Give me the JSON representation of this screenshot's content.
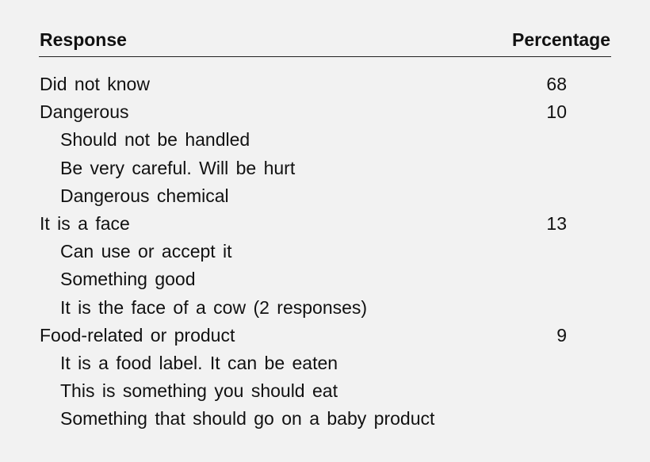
{
  "table": {
    "headers": {
      "response": "Response",
      "percentage": "Percentage"
    },
    "rows": [
      {
        "label": "Did not know",
        "value": "68",
        "indent": false
      },
      {
        "label": "Dangerous",
        "value": "10",
        "indent": false
      },
      {
        "label": "Should not be handled",
        "value": "",
        "indent": true
      },
      {
        "label": "Be very careful. Will be hurt",
        "value": "",
        "indent": true
      },
      {
        "label": "Dangerous chemical",
        "value": "",
        "indent": true
      },
      {
        "label": "It is a face",
        "value": "13",
        "indent": false
      },
      {
        "label": "Can use or accept it",
        "value": "",
        "indent": true
      },
      {
        "label": "Something good",
        "value": "",
        "indent": true
      },
      {
        "label": "It is the face of a cow (2 responses)",
        "value": "",
        "indent": true
      },
      {
        "label": "Food-related or product",
        "value": "9",
        "indent": false
      },
      {
        "label": "It is a food label. It can be eaten",
        "value": "",
        "indent": true
      },
      {
        "label": "This is something you should eat",
        "value": "",
        "indent": true
      },
      {
        "label": "Something that should go on a baby product",
        "value": "",
        "indent": true
      }
    ]
  }
}
